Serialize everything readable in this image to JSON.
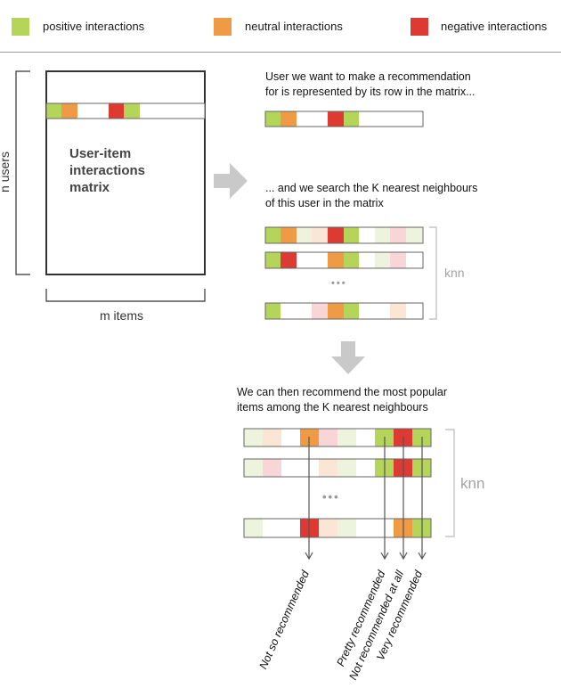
{
  "legend": {
    "items": [
      {
        "label": "positive interactions",
        "color": "#b5d45a"
      },
      {
        "label": "neutral interactions",
        "color": "#ef9a45"
      },
      {
        "label": "negative interactions",
        "color": "#dd3a33"
      }
    ]
  },
  "colors": {
    "positive": "#b5d45a",
    "neutral": "#ef9a45",
    "negative": "#dd3a33",
    "positive_faint": "#eef3dd",
    "neutral_faint": "#fbe6d5",
    "negative_faint": "#f8d6d8",
    "arrow_gray": "#c9c9c9",
    "line": "#333333"
  },
  "matrix": {
    "title": "User-item interactions matrix",
    "title_lines": [
      "User-item",
      "interactions",
      "matrix"
    ],
    "rows_label": "n users",
    "cols_label": "m items"
  },
  "step1": {
    "caption_lines": [
      "User we want to make a recommendation",
      "for is represented by its row in the matrix..."
    ]
  },
  "step2": {
    "caption_lines": [
      "... and we search the K nearest neighbours",
      "of this user in the matrix"
    ],
    "knn_label": "knn",
    "ellipsis": "•••"
  },
  "step3": {
    "caption_lines": [
      "We can then recommend the most popular",
      "items among the K nearest neighbours"
    ],
    "knn_label": "knn",
    "ellipsis": "•••",
    "output_labels": [
      "Not so recommended",
      "Pretty recommended",
      "Not recommended at all",
      "Very recommended"
    ]
  }
}
